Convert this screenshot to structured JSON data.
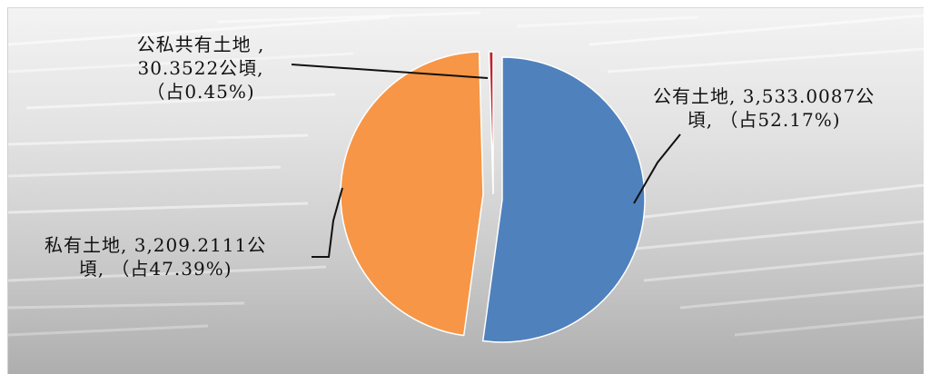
{
  "chart_data": {
    "type": "pie",
    "unit": "公頃",
    "slices": [
      {
        "key": "public",
        "category": "公有土地",
        "value": 3533.0087,
        "percent": 52.17,
        "color": "#4f81bd",
        "label_lines": [
          "公有土地, 3,533.0087公",
          "頃, （占52.17%)"
        ]
      },
      {
        "key": "private",
        "category": "私有土地",
        "value": 3209.2111,
        "percent": 47.39,
        "color": "#f79646",
        "label_lines": [
          "私有土地, 3,209.2111公",
          "頃, （占47.39%)"
        ]
      },
      {
        "key": "mixed",
        "category": "公私共有土地",
        "value": 30.3522,
        "percent": 0.45,
        "color": "#c0202a",
        "label_lines": [
          "公私共有土地 ,",
          "30.3522公頃,",
          "（占0.45%)"
        ]
      }
    ]
  }
}
